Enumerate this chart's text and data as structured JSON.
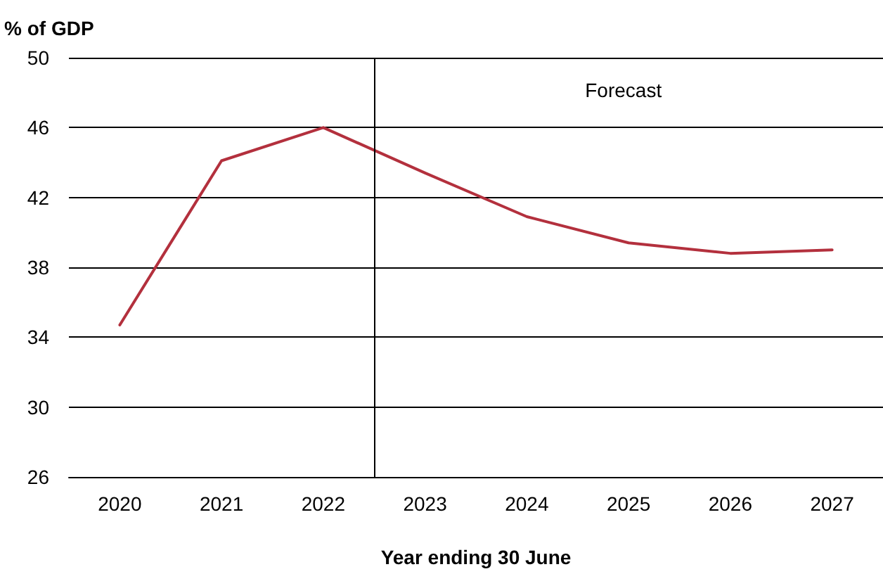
{
  "chart_data": {
    "type": "line",
    "ylabel": "% of GDP",
    "xlabel": "Year ending 30 June",
    "x": [
      2020,
      2021,
      2022,
      2023,
      2024,
      2025,
      2026,
      2027
    ],
    "series": [
      {
        "color": "#b3303d",
        "values": [
          34.7,
          44.1,
          46.0,
          43.4,
          40.9,
          39.4,
          38.8,
          39.0
        ]
      }
    ],
    "xlim": [
      2019.5,
      2027.5
    ],
    "xticks": [
      2020,
      2021,
      2022,
      2023,
      2024,
      2025,
      2026,
      2027
    ],
    "ylim": [
      26,
      50
    ],
    "yticks": [
      26,
      30,
      34,
      38,
      42,
      46,
      50
    ],
    "grid": "y",
    "marker": "none",
    "line_style": "solid",
    "ref_lines": [
      {
        "axis": "x",
        "value": 2022.5,
        "label": "Forecast",
        "color": "#000000"
      }
    ]
  }
}
